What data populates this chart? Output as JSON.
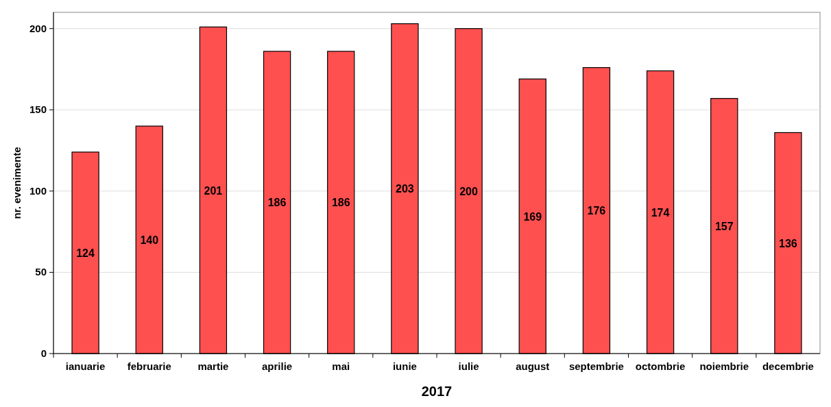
{
  "chart_data": {
    "type": "bar",
    "xlabel": "2017",
    "ylabel": "nr. evenimente",
    "categories": [
      "ianuarie",
      "februarie",
      "martie",
      "aprilie",
      "mai",
      "iunie",
      "iulie",
      "august",
      "septembrie",
      "octombrie",
      "noiembrie",
      "decembrie"
    ],
    "values": [
      124,
      140,
      201,
      186,
      186,
      203,
      200,
      169,
      176,
      174,
      157,
      136
    ],
    "color": "#ff5050",
    "ylim": [
      0,
      210
    ],
    "yticks": [
      0,
      50,
      100,
      150,
      200
    ],
    "grid": "y",
    "data_labels": true
  }
}
